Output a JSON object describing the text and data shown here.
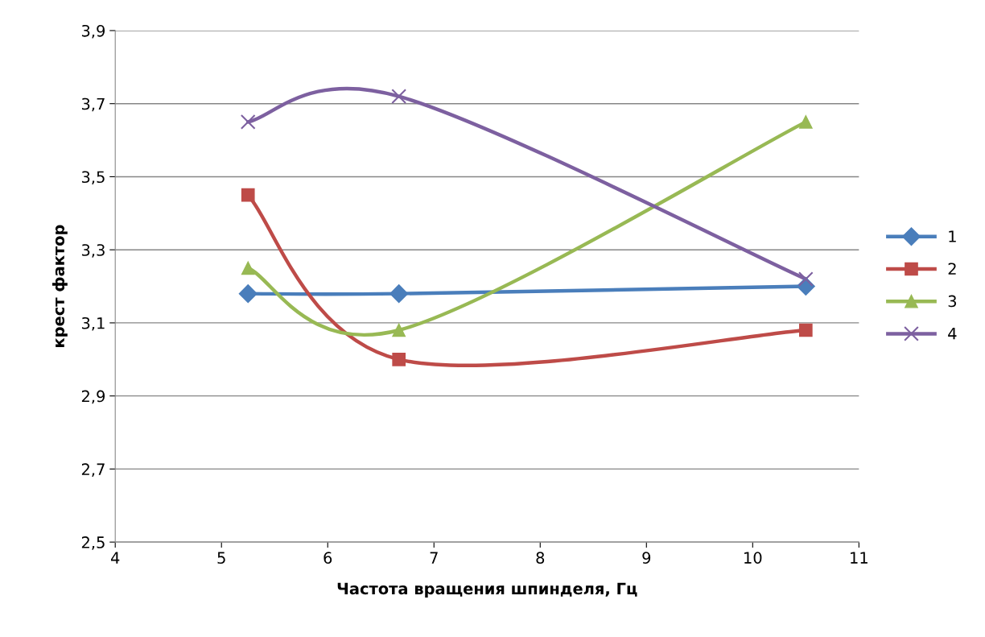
{
  "chart_data": {
    "type": "line",
    "xlabel": "Частота вращения шпинделя, Гц",
    "ylabel": "крест фактор",
    "x": [
      5.25,
      6.67,
      10.5
    ],
    "series": [
      {
        "name": "1",
        "color": "#4a7ebb",
        "marker": "diamond",
        "values": [
          3.18,
          3.18,
          3.2
        ]
      },
      {
        "name": "2",
        "color": "#be4b48",
        "marker": "square",
        "values": [
          3.45,
          3.0,
          3.08
        ]
      },
      {
        "name": "3",
        "color": "#98b954",
        "marker": "triangle",
        "values": [
          3.25,
          3.08,
          3.65
        ]
      },
      {
        "name": "4",
        "color": "#7d60a0",
        "marker": "cross",
        "values": [
          3.65,
          3.72,
          3.22
        ]
      }
    ],
    "xlim": [
      4,
      11
    ],
    "xticks": [
      4,
      5,
      6,
      7,
      8,
      9,
      10,
      11
    ],
    "ylim": [
      2.5,
      3.9
    ],
    "yticks": [
      {
        "value": 2.5,
        "label": "2,5"
      },
      {
        "value": 2.7,
        "label": "2,7"
      },
      {
        "value": 2.9,
        "label": "2,9"
      },
      {
        "value": 3.1,
        "label": "3,1"
      },
      {
        "value": 3.3,
        "label": "3,3"
      },
      {
        "value": 3.5,
        "label": "3,5"
      },
      {
        "value": 3.7,
        "label": "3,7"
      },
      {
        "value": 3.9,
        "label": "3,9"
      }
    ],
    "grid": "y",
    "legend": "right",
    "line_style": "solid"
  }
}
